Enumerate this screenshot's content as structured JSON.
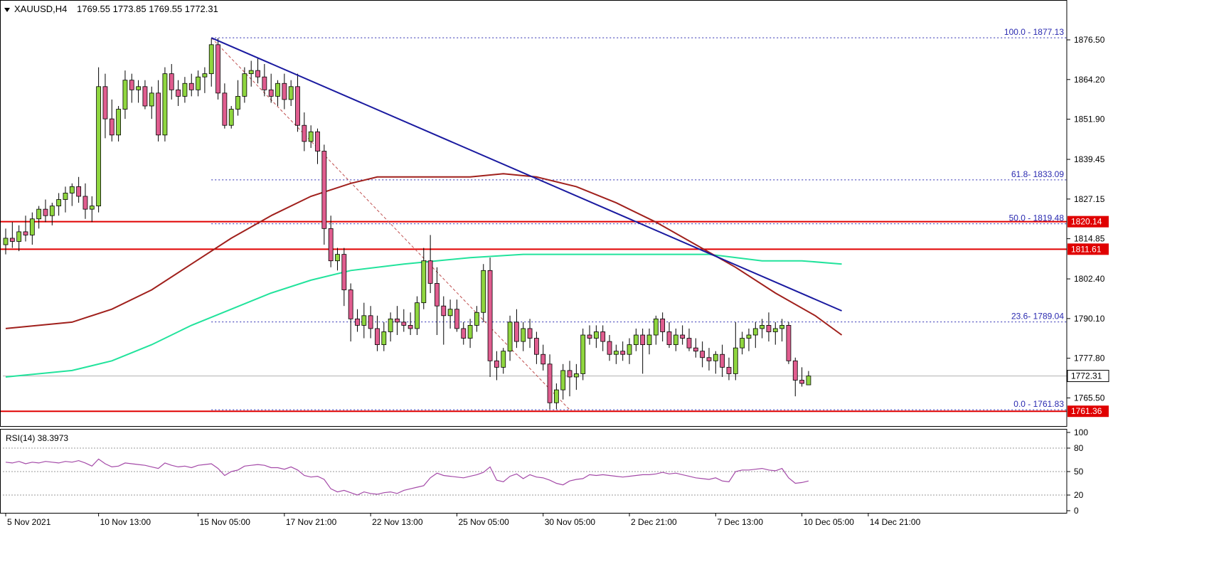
{
  "header": {
    "symbol": "XAUUSD,H4",
    "ohlc": "1769.55 1773.85 1769.55 1772.31"
  },
  "colors": {
    "bull_candle": "#8fd63f",
    "bear_candle": "#e05d8f",
    "trendline": "#1a1aa0",
    "ma_fast": "#a0201c",
    "ma_slow": "#22e39c",
    "level_line": "#e00000",
    "fib_line": "#2a2ab0",
    "rsi_line": "#a44aa8"
  },
  "chart_data": [
    {
      "type": "candlestick",
      "title": "XAUUSD,H4",
      "x_range": [
        0,
        124
      ],
      "ylim": [
        1757.0,
        1884.0
      ],
      "y_ticks": [
        "1876.50",
        "1864.20",
        "1851.90",
        "1839.45",
        "1827.15",
        "1814.85",
        "1802.40",
        "1790.10",
        "1777.80",
        "1765.50"
      ],
      "y_tick_values": [
        1876.5,
        1864.2,
        1851.9,
        1839.45,
        1827.15,
        1814.85,
        1802.4,
        1790.1,
        1777.8,
        1765.5
      ],
      "x_ticks": [
        {
          "x": 0,
          "label": "5 Nov 2021"
        },
        {
          "x": 14,
          "label": "10 Nov 13:00"
        },
        {
          "x": 29,
          "label": "15 Nov 05:00"
        },
        {
          "x": 42,
          "label": "17 Nov 21:00"
        },
        {
          "x": 55,
          "label": "22 Nov 13:00"
        },
        {
          "x": 68,
          "label": "25 Nov 05:00"
        },
        {
          "x": 81,
          "label": "30 Nov 05:00"
        },
        {
          "x": 94,
          "label": "2 Dec 21:00"
        },
        {
          "x": 107,
          "label": "7 Dec 13:00"
        },
        {
          "x": 120,
          "label": "10 Dec 05:00"
        },
        {
          "x": 130,
          "label": "14 Dec 21:00"
        }
      ],
      "candles": [
        [
          1813,
          1818,
          1810,
          1815
        ],
        [
          1815,
          1820,
          1812,
          1814
        ],
        [
          1814,
          1819,
          1811,
          1817
        ],
        [
          1817,
          1822,
          1814,
          1816
        ],
        [
          1816,
          1823,
          1813,
          1821
        ],
        [
          1821,
          1825,
          1818,
          1824
        ],
        [
          1824,
          1827,
          1820,
          1822
        ],
        [
          1822,
          1826,
          1819,
          1825
        ],
        [
          1825,
          1829,
          1822,
          1827
        ],
        [
          1827,
          1831,
          1823,
          1829
        ],
        [
          1829,
          1832,
          1825,
          1831
        ],
        [
          1831,
          1834,
          1826,
          1828
        ],
        [
          1828,
          1832,
          1821,
          1824
        ],
        [
          1824,
          1828,
          1820,
          1825
        ],
        [
          1825,
          1868,
          1823,
          1862
        ],
        [
          1862,
          1866,
          1846,
          1852
        ],
        [
          1852,
          1858,
          1845,
          1847
        ],
        [
          1847,
          1856,
          1845,
          1855
        ],
        [
          1855,
          1867,
          1852,
          1864
        ],
        [
          1864,
          1866,
          1857,
          1861
        ],
        [
          1861,
          1864,
          1857,
          1862
        ],
        [
          1862,
          1864,
          1855,
          1856
        ],
        [
          1856,
          1862,
          1852,
          1860
        ],
        [
          1860,
          1864,
          1845,
          1847
        ],
        [
          1847,
          1868,
          1845,
          1866
        ],
        [
          1866,
          1869,
          1858,
          1861
        ],
        [
          1861,
          1864,
          1856,
          1859
        ],
        [
          1859,
          1865,
          1857,
          1863
        ],
        [
          1863,
          1866,
          1859,
          1861
        ],
        [
          1861,
          1867,
          1859,
          1865
        ],
        [
          1865,
          1868,
          1860,
          1866
        ],
        [
          1866,
          1877,
          1862,
          1875
        ],
        [
          1875,
          1877,
          1858,
          1860
        ],
        [
          1860,
          1863,
          1849,
          1850
        ],
        [
          1850,
          1856,
          1849,
          1855
        ],
        [
          1855,
          1864,
          1853,
          1859
        ],
        [
          1859,
          1868,
          1857,
          1866
        ],
        [
          1866,
          1870,
          1862,
          1867
        ],
        [
          1867,
          1871,
          1863,
          1865
        ],
        [
          1865,
          1869,
          1859,
          1861
        ],
        [
          1861,
          1866,
          1857,
          1859
        ],
        [
          1859,
          1864,
          1856,
          1863
        ],
        [
          1863,
          1866,
          1855,
          1858
        ],
        [
          1858,
          1864,
          1856,
          1862
        ],
        [
          1862,
          1866,
          1848,
          1850
        ],
        [
          1850,
          1854,
          1842,
          1845
        ],
        [
          1845,
          1850,
          1843,
          1848
        ],
        [
          1848,
          1849,
          1838,
          1842
        ],
        [
          1842,
          1844,
          1813,
          1818
        ],
        [
          1818,
          1822,
          1806,
          1808
        ],
        [
          1808,
          1812,
          1805,
          1810
        ],
        [
          1810,
          1812,
          1794,
          1799
        ],
        [
          1799,
          1801,
          1783,
          1790
        ],
        [
          1790,
          1793,
          1786,
          1788
        ],
        [
          1788,
          1795,
          1784,
          1791
        ],
        [
          1791,
          1794,
          1784,
          1787
        ],
        [
          1787,
          1791,
          1780,
          1782
        ],
        [
          1782,
          1789,
          1780,
          1786
        ],
        [
          1786,
          1792,
          1783,
          1790
        ],
        [
          1790,
          1794,
          1785,
          1789
        ],
        [
          1789,
          1793,
          1786,
          1788
        ],
        [
          1788,
          1792,
          1785,
          1787
        ],
        [
          1787,
          1797,
          1785,
          1795
        ],
        [
          1795,
          1812,
          1793,
          1808
        ],
        [
          1808,
          1816,
          1798,
          1801
        ],
        [
          1801,
          1806,
          1785,
          1794
        ],
        [
          1794,
          1797,
          1782,
          1791
        ],
        [
          1791,
          1796,
          1787,
          1793
        ],
        [
          1793,
          1796,
          1786,
          1787
        ],
        [
          1787,
          1789,
          1782,
          1784
        ],
        [
          1784,
          1790,
          1781,
          1788
        ],
        [
          1788,
          1794,
          1786,
          1792
        ],
        [
          1792,
          1807,
          1789,
          1805
        ],
        [
          1805,
          1809,
          1772,
          1777
        ],
        [
          1777,
          1780,
          1771,
          1775
        ],
        [
          1775,
          1781,
          1773,
          1780
        ],
        [
          1780,
          1791,
          1777,
          1789
        ],
        [
          1789,
          1793,
          1781,
          1783
        ],
        [
          1783,
          1789,
          1780,
          1787
        ],
        [
          1787,
          1790,
          1781,
          1784
        ],
        [
          1784,
          1786,
          1776,
          1779
        ],
        [
          1779,
          1782,
          1774,
          1776
        ],
        [
          1776,
          1779,
          1762,
          1764
        ],
        [
          1764,
          1770,
          1762,
          1768
        ],
        [
          1768,
          1776,
          1765,
          1774
        ],
        [
          1774,
          1777,
          1766,
          1772
        ],
        [
          1772,
          1776,
          1768,
          1773
        ],
        [
          1773,
          1787,
          1771,
          1785
        ],
        [
          1785,
          1788,
          1782,
          1784
        ],
        [
          1784,
          1788,
          1781,
          1786
        ],
        [
          1786,
          1788,
          1780,
          1783
        ],
        [
          1783,
          1785,
          1777,
          1779
        ],
        [
          1779,
          1782,
          1776,
          1780
        ],
        [
          1780,
          1783,
          1777,
          1779
        ],
        [
          1779,
          1784,
          1776,
          1782
        ],
        [
          1782,
          1787,
          1780,
          1785
        ],
        [
          1785,
          1787,
          1773,
          1782
        ],
        [
          1782,
          1787,
          1779,
          1785
        ],
        [
          1785,
          1791,
          1782,
          1790
        ],
        [
          1790,
          1792,
          1783,
          1786
        ],
        [
          1786,
          1789,
          1781,
          1782
        ],
        [
          1782,
          1787,
          1780,
          1785
        ],
        [
          1785,
          1788,
          1782,
          1784
        ],
        [
          1784,
          1787,
          1780,
          1781
        ],
        [
          1781,
          1784,
          1778,
          1780
        ],
        [
          1780,
          1783,
          1775,
          1778
        ],
        [
          1778,
          1781,
          1774,
          1777
        ],
        [
          1777,
          1780,
          1773,
          1779
        ],
        [
          1779,
          1782,
          1772,
          1775
        ],
        [
          1775,
          1778,
          1771,
          1773
        ],
        [
          1773,
          1789,
          1771,
          1781
        ],
        [
          1781,
          1786,
          1779,
          1784
        ],
        [
          1784,
          1787,
          1780,
          1785
        ],
        [
          1785,
          1789,
          1781,
          1787
        ],
        [
          1787,
          1790,
          1784,
          1788
        ],
        [
          1788,
          1792,
          1783,
          1786
        ],
        [
          1786,
          1789,
          1782,
          1787
        ],
        [
          1787,
          1790,
          1783,
          1788
        ],
        [
          1788,
          1789,
          1776,
          1777
        ],
        [
          1777,
          1778,
          1766,
          1771
        ],
        [
          1771,
          1775,
          1769,
          1770
        ],
        [
          1769.55,
          1773.85,
          1769.55,
          1772.31
        ]
      ],
      "trendline": {
        "from": {
          "x": 31,
          "price": 1877.13
        },
        "to": {
          "x": 126,
          "price": 1792.5
        }
      },
      "ma_fast_100": [
        [
          0,
          1787
        ],
        [
          10,
          1789
        ],
        [
          16,
          1793
        ],
        [
          22,
          1799
        ],
        [
          28,
          1807
        ],
        [
          34,
          1815
        ],
        [
          40,
          1822
        ],
        [
          46,
          1828
        ],
        [
          52,
          1832
        ],
        [
          56,
          1834
        ],
        [
          62,
          1834
        ],
        [
          70,
          1834
        ],
        [
          75,
          1835
        ],
        [
          80,
          1834
        ],
        [
          86,
          1831
        ],
        [
          92,
          1826
        ],
        [
          98,
          1820
        ],
        [
          104,
          1813
        ],
        [
          110,
          1806
        ],
        [
          116,
          1798
        ],
        [
          122,
          1791
        ],
        [
          126,
          1785
        ]
      ],
      "ma_slow_200": [
        [
          0,
          1772
        ],
        [
          10,
          1774
        ],
        [
          16,
          1777
        ],
        [
          22,
          1782
        ],
        [
          28,
          1788
        ],
        [
          34,
          1793
        ],
        [
          40,
          1798
        ],
        [
          46,
          1802
        ],
        [
          52,
          1805
        ],
        [
          60,
          1807
        ],
        [
          70,
          1809
        ],
        [
          78,
          1810
        ],
        [
          86,
          1810
        ],
        [
          96,
          1810
        ],
        [
          106,
          1810
        ],
        [
          114,
          1808
        ],
        [
          120,
          1808
        ],
        [
          126,
          1807
        ]
      ],
      "fib_levels": [
        {
          "label": "100.0 - 1877.13",
          "price": 1877.13
        },
        {
          "label": "61.8- 1833.09",
          "price": 1833.09
        },
        {
          "label": "50.0 - 1819.48",
          "price": 1819.48
        },
        {
          "label": "23.6- 1789.04",
          "price": 1789.04
        },
        {
          "label": "0.0 - 1761.83",
          "price": 1761.83
        }
      ],
      "fib_start_x": 31,
      "horizontal_levels": [
        {
          "price": 1820.14,
          "label": "1820.14"
        },
        {
          "price": 1811.61,
          "label": "1811.61"
        },
        {
          "price": 1761.36,
          "label": "1761.36"
        }
      ],
      "current_price": {
        "price": 1772.31,
        "label": "1772.31"
      },
      "retrace_line": {
        "from": {
          "x": 31,
          "price": 1877.13
        },
        "to": {
          "x": 85,
          "price": 1761.83
        }
      }
    },
    {
      "type": "line",
      "title": "RSI(14) 38.3973",
      "ylim": [
        0,
        100
      ],
      "y_ticks": [
        "100",
        "80",
        "50",
        "20",
        "0"
      ],
      "y_tick_values": [
        100,
        80,
        50,
        20,
        0
      ],
      "levels": [
        80,
        50,
        20
      ],
      "series": [
        {
          "name": "RSI(14)",
          "values": [
            62,
            61,
            63,
            60,
            62,
            61,
            63,
            62,
            61,
            63,
            62,
            64,
            61,
            57,
            66,
            60,
            56,
            57,
            61,
            60,
            59,
            58,
            56,
            54,
            61,
            58,
            56,
            57,
            55,
            58,
            59,
            60,
            54,
            45,
            50,
            52,
            57,
            58,
            59,
            58,
            55,
            55,
            53,
            56,
            52,
            45,
            43,
            44,
            40,
            28,
            24,
            26,
            23,
            20,
            24,
            22,
            21,
            23,
            24,
            22,
            26,
            28,
            30,
            32,
            42,
            48,
            45,
            44,
            43,
            42,
            44,
            46,
            49,
            56,
            39,
            37,
            44,
            47,
            41,
            46,
            43,
            42,
            39,
            35,
            33,
            38,
            40,
            41,
            46,
            45,
            46,
            45,
            44,
            43,
            44,
            45,
            46,
            46,
            47,
            49,
            47,
            48,
            46,
            44,
            42,
            41,
            40,
            42,
            38,
            37,
            50,
            52,
            52,
            53,
            54,
            52,
            51,
            54,
            42,
            35,
            36,
            38
          ]
        }
      ]
    }
  ]
}
